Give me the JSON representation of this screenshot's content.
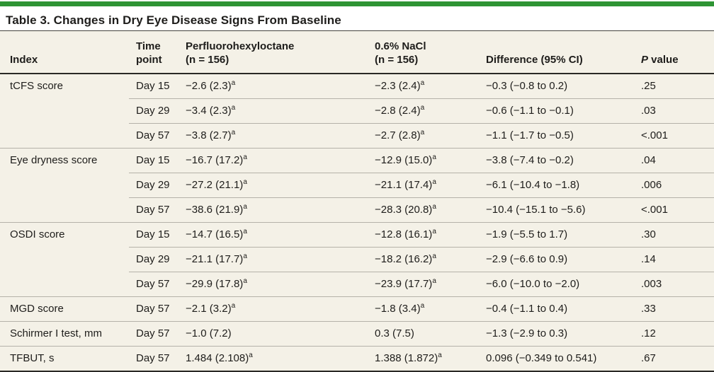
{
  "colors": {
    "accent_green": "#2e9434",
    "table_background_cream": "#f4f1e7",
    "rule_light_gray": "#b5b2a9",
    "rule_dark": "#2a2925",
    "text": "#1e1d1b"
  },
  "table": {
    "title": "Table 3. Changes in Dry Eye Disease Signs From Baseline",
    "columns": [
      {
        "id": "index",
        "lines": [
          "Index"
        ],
        "italic_first": false
      },
      {
        "id": "time-point",
        "lines": [
          "Time",
          "point"
        ],
        "italic_first": false
      },
      {
        "id": "perfluorohexyloctane",
        "lines": [
          "Perfluorohexyloctane",
          "(n = 156)"
        ],
        "italic_first": false
      },
      {
        "id": "nacl",
        "lines": [
          "0.6% NaCl",
          "(n = 156)"
        ],
        "italic_first": false
      },
      {
        "id": "difference",
        "lines": [
          "Difference (95% CI)"
        ],
        "italic_first": false
      },
      {
        "id": "p-value",
        "lines": [
          "P value"
        ],
        "italic_first": true
      }
    ],
    "rows": [
      {
        "index": "tCFS score",
        "group_start": true,
        "time": "Day 15",
        "drug": "−2.6 (2.3)",
        "drug_sup": "a",
        "nacl": "−2.3 (2.4)",
        "nacl_sup": "a",
        "diff": "−0.3 (−0.8 to 0.2)",
        "p": ".25"
      },
      {
        "index": "",
        "group_start": false,
        "time": "Day 29",
        "drug": "−3.4 (2.3)",
        "drug_sup": "a",
        "nacl": "−2.8 (2.4)",
        "nacl_sup": "a",
        "diff": "−0.6 (−1.1 to −0.1)",
        "p": ".03"
      },
      {
        "index": "",
        "group_start": false,
        "time": "Day 57",
        "drug": "−3.8 (2.7)",
        "drug_sup": "a",
        "nacl": "−2.7 (2.8)",
        "nacl_sup": "a",
        "diff": "−1.1 (−1.7 to −0.5)",
        "p": "<.001"
      },
      {
        "index": "Eye dryness score",
        "group_start": true,
        "time": "Day 15",
        "drug": "−16.7 (17.2)",
        "drug_sup": "a",
        "nacl": "−12.9 (15.0)",
        "nacl_sup": "a",
        "diff": "−3.8 (−7.4 to −0.2)",
        "p": ".04"
      },
      {
        "index": "",
        "group_start": false,
        "time": "Day 29",
        "drug": "−27.2 (21.1)",
        "drug_sup": "a",
        "nacl": "−21.1 (17.4)",
        "nacl_sup": "a",
        "diff": "−6.1 (−10.4 to −1.8)",
        "p": ".006"
      },
      {
        "index": "",
        "group_start": false,
        "time": "Day 57",
        "drug": "−38.6 (21.9)",
        "drug_sup": "a",
        "nacl": "−28.3 (20.8)",
        "nacl_sup": "a",
        "diff": "−10.4 (−15.1 to −5.6)",
        "p": "<.001"
      },
      {
        "index": "OSDI score",
        "group_start": true,
        "time": "Day 15",
        "drug": "−14.7 (16.5)",
        "drug_sup": "a",
        "nacl": "−12.8 (16.1)",
        "nacl_sup": "a",
        "diff": "−1.9 (−5.5 to 1.7)",
        "p": ".30"
      },
      {
        "index": "",
        "group_start": false,
        "time": "Day 29",
        "drug": "−21.1 (17.7)",
        "drug_sup": "a",
        "nacl": "−18.2 (16.2)",
        "nacl_sup": "a",
        "diff": "−2.9 (−6.6 to 0.9)",
        "p": ".14"
      },
      {
        "index": "",
        "group_start": false,
        "time": "Day 57",
        "drug": "−29.9 (17.8)",
        "drug_sup": "a",
        "nacl": "−23.9 (17.7)",
        "nacl_sup": "a",
        "diff": "−6.0 (−10.0 to −2.0)",
        "p": ".003"
      },
      {
        "index": "MGD score",
        "group_start": true,
        "time": "Day 57",
        "drug": "−2.1 (3.2)",
        "drug_sup": "a",
        "nacl": "−1.8 (3.4)",
        "nacl_sup": "a",
        "diff": "−0.4 (−1.1 to 0.4)",
        "p": ".33"
      },
      {
        "index": "Schirmer I test, mm",
        "group_start": true,
        "time": "Day 57",
        "drug": "−1.0 (7.2)",
        "drug_sup": "",
        "nacl": "0.3 (7.5)",
        "nacl_sup": "",
        "diff": "−1.3 (−2.9 to 0.3)",
        "p": ".12"
      },
      {
        "index": "TFBUT, s",
        "group_start": true,
        "time": "Day 57",
        "drug": "1.484 (2.108)",
        "drug_sup": "a",
        "nacl": "1.388 (1.872)",
        "nacl_sup": "a",
        "diff": "0.096 (−0.349 to 0.541)",
        "p": ".67"
      }
    ]
  }
}
